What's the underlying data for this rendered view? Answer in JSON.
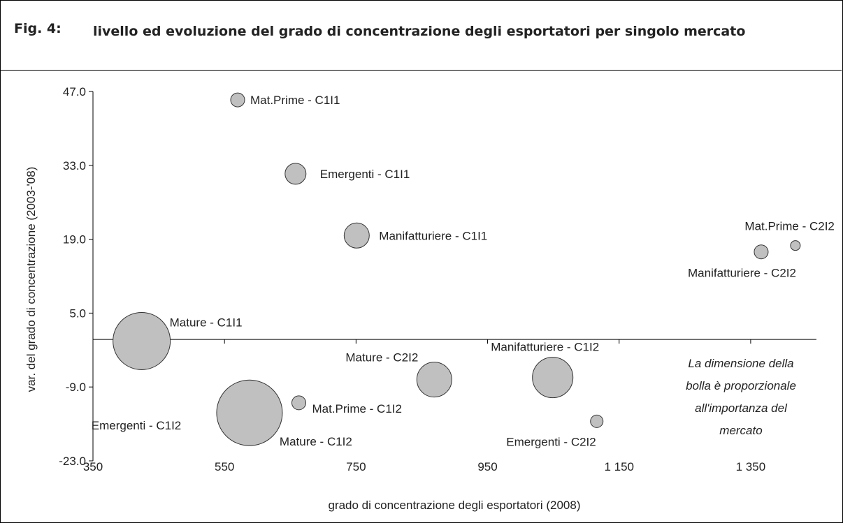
{
  "fig_label": "Fig. 4:",
  "chart_data": {
    "type": "bubble",
    "title": "livello ed evoluzione del grado di concentrazione degli esportatori per singolo mercato",
    "x_label": "grado di concentrazione degli esportatori (2008)",
    "y_label": "var. del grado di concentrazione (2003-'08)",
    "xlim": [
      350,
      1450
    ],
    "ylim": [
      -23,
      47
    ],
    "xticks": [
      350,
      550,
      750,
      950,
      {
        "value": 1150,
        "label": "1 150"
      },
      {
        "value": 1350,
        "label": "1 350"
      }
    ],
    "yticks": [
      {
        "value": -23,
        "label": "-23.0"
      },
      {
        "value": -9,
        "label": "-9.0"
      },
      {
        "value": 5,
        "label": "5.0"
      },
      {
        "value": 19,
        "label": "19.0"
      },
      {
        "value": 33,
        "label": "33.0"
      },
      {
        "value": 47,
        "label": "47.0"
      }
    ],
    "color": "#c0c0c0",
    "labels": [
      "Mat.Prime - C1I1",
      "Emergenti - C1I1",
      "Manifatturiere - C1I1",
      "Mat.Prime - C2I2",
      "Manifatturiere - C2I2",
      "Mature - C1I1",
      "Mature - C2I2",
      "Manifatturiere - C1I2",
      "Mat.Prime - C1I2",
      "Mature - C1I2",
      "Emergenti - C2I2"
    ],
    "x": [
      570,
      658,
      751,
      1418,
      1366,
      424,
      869,
      1049,
      663,
      588,
      1116
    ],
    "y": [
      45.4,
      31.4,
      19.7,
      17.8,
      16.6,
      -0.3,
      -7.6,
      -7.2,
      -12.0,
      -13.9,
      -15.5
    ],
    "size": [
      10,
      15,
      18,
      7,
      10,
      41,
      25,
      29,
      10,
      47,
      9
    ],
    "annotations": [
      "Emergenti - C1I2",
      "La dimensione della bolla è proporzionale all'importanza del mercato"
    ]
  }
}
